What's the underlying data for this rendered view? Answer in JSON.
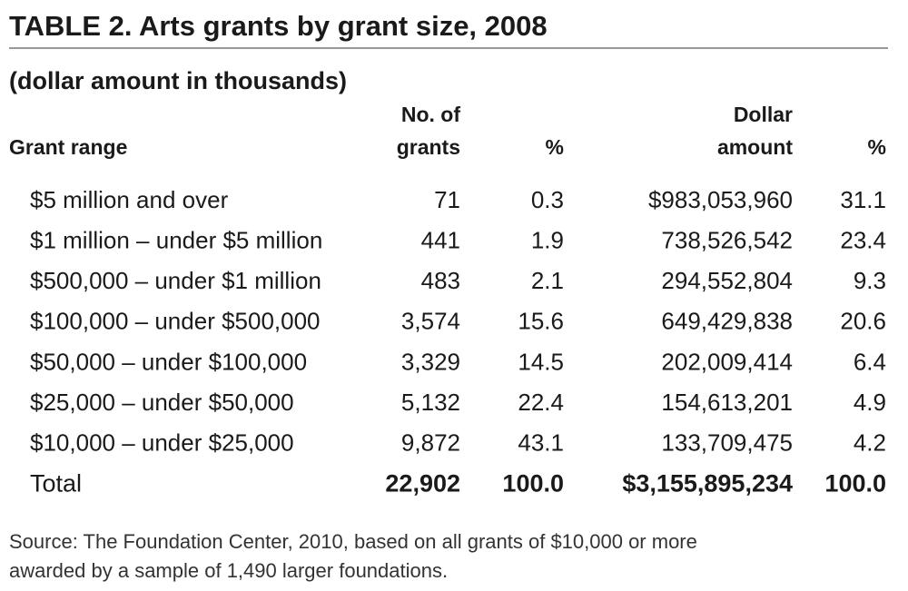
{
  "header": {
    "title": "TABLE 2. Arts grants by grant size, 2008",
    "subtitle": "(dollar amount in thousands)"
  },
  "table": {
    "columns": [
      [
        "Grant range"
      ],
      [
        "No. of",
        "grants"
      ],
      [
        "%"
      ],
      [
        "Dollar",
        "amount"
      ],
      [
        "%"
      ]
    ],
    "rows": [
      [
        "$5 million and over",
        "71",
        "0.3",
        "$983,053,960",
        "31.1"
      ],
      [
        "$1 million – under $5 million",
        "441",
        "1.9",
        "738,526,542",
        "23.4"
      ],
      [
        "$500,000 – under $1 million",
        "483",
        "2.1",
        "294,552,804",
        "9.3"
      ],
      [
        "$100,000 – under $500,000",
        "3,574",
        "15.6",
        "649,429,838",
        "20.6"
      ],
      [
        "$50,000 – under $100,000",
        "3,329",
        "14.5",
        "202,009,414",
        "6.4"
      ],
      [
        "$25,000 – under $50,000",
        "5,132",
        "22.4",
        "154,613,201",
        "4.9"
      ],
      [
        "$10,000 – under $25,000",
        "9,872",
        "43.1",
        "133,709,475",
        "4.2"
      ]
    ],
    "total": [
      "Total",
      "22,902",
      "100.0",
      "$3,155,895,234",
      "100.0"
    ]
  },
  "footer": {
    "source": [
      "Source: The Foundation Center, 2010, based on all grants of $10,000 or more",
      "awarded by a sample of 1,490 larger foundations."
    ]
  }
}
